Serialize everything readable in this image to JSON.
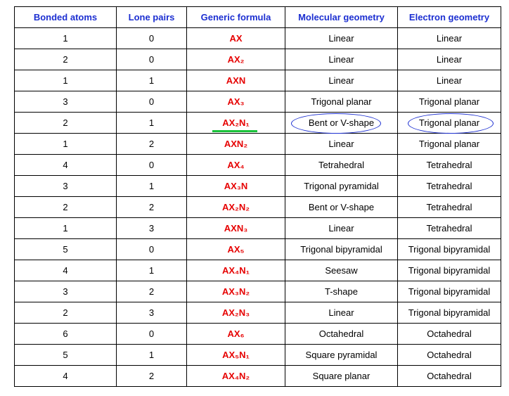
{
  "table": {
    "header": [
      "Bonded atoms",
      "Lone pairs",
      "Generic formula",
      "Molecular geometry",
      "Electron geometry"
    ],
    "rows": [
      [
        "1",
        "0",
        "AX",
        "Linear",
        "Linear"
      ],
      [
        "2",
        "0",
        "AX₂",
        "Linear",
        "Linear"
      ],
      [
        "1",
        "1",
        "AXN",
        "Linear",
        "Linear"
      ],
      [
        "3",
        "0",
        "AX₃",
        "Trigonal planar",
        "Trigonal planar"
      ],
      [
        "2",
        "1",
        "AX₂N₁",
        "Bent or V-shape",
        "Trigonal planar"
      ],
      [
        "1",
        "2",
        "AXN₂",
        "Linear",
        "Trigonal planar"
      ],
      [
        "4",
        "0",
        "AX₄",
        "Tetrahedral",
        "Tetrahedral"
      ],
      [
        "3",
        "1",
        "AX₃N",
        "Trigonal pyramidal",
        "Tetrahedral"
      ],
      [
        "2",
        "2",
        "AX₂N₂",
        "Bent or V-shape",
        "Tetrahedral"
      ],
      [
        "1",
        "3",
        "AXN₃",
        "Linear",
        "Tetrahedral"
      ],
      [
        "5",
        "0",
        "AX₅",
        "Trigonal bipyramidal",
        "Trigonal bipyramidal"
      ],
      [
        "4",
        "1",
        "AX₄N₁",
        "Seesaw",
        "Trigonal bipyramidal"
      ],
      [
        "3",
        "2",
        "AX₃N₂",
        "T-shape",
        "Trigonal bipyramidal"
      ],
      [
        "2",
        "3",
        "AX₂N₃",
        "Linear",
        "Trigonal bipyramidal"
      ],
      [
        "6",
        "0",
        "AX₆",
        "Octahedral",
        "Octahedral"
      ],
      [
        "5",
        "1",
        "AX₅N₁",
        "Square pyramidal",
        "Octahedral"
      ],
      [
        "4",
        "2",
        "AX₄N₂",
        "Square planar",
        "Octahedral"
      ]
    ]
  }
}
